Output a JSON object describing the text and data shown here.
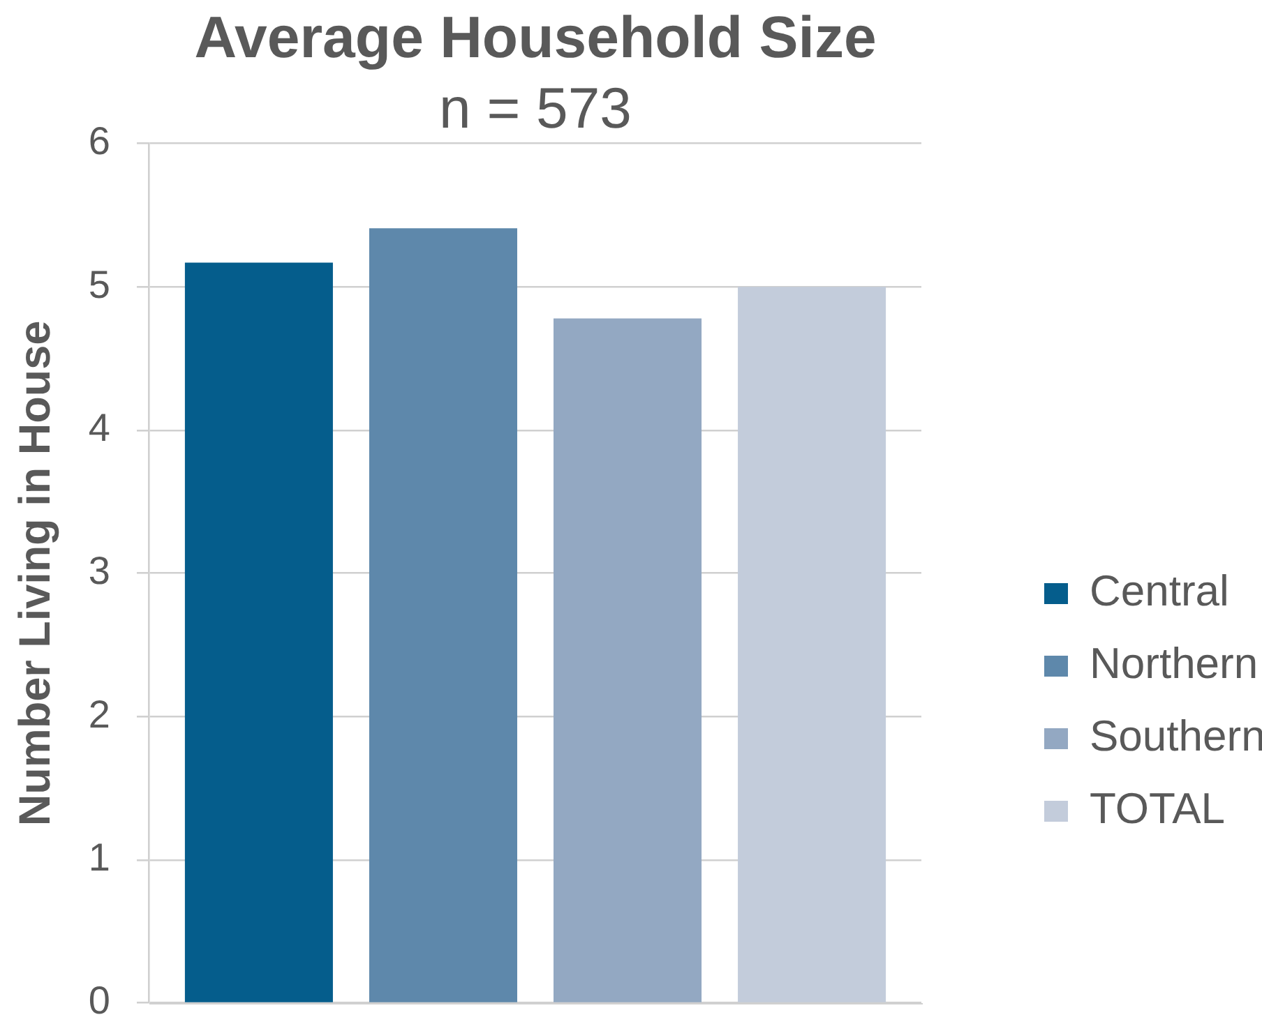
{
  "chart_data": {
    "type": "bar",
    "title": "Average Household Size",
    "subtitle": "n = 573",
    "ylabel": "Number Living in House",
    "categories": [
      null
    ],
    "series": [
      {
        "name": "Central",
        "color": "#055d8c",
        "values": [
          5.17
        ]
      },
      {
        "name": "Northern",
        "color": "#5e88ab",
        "values": [
          5.41
        ]
      },
      {
        "name": "Southern",
        "color": "#93a8c2",
        "values": [
          4.78
        ]
      },
      {
        "name": "TOTAL",
        "color": "#c3ccdb",
        "values": [
          5.0
        ]
      }
    ],
    "ylim": [
      0,
      6
    ],
    "yticks": [
      0,
      1,
      2,
      3,
      4,
      5,
      6
    ],
    "grid": "y",
    "legend": "right",
    "tick_labels": "y"
  }
}
